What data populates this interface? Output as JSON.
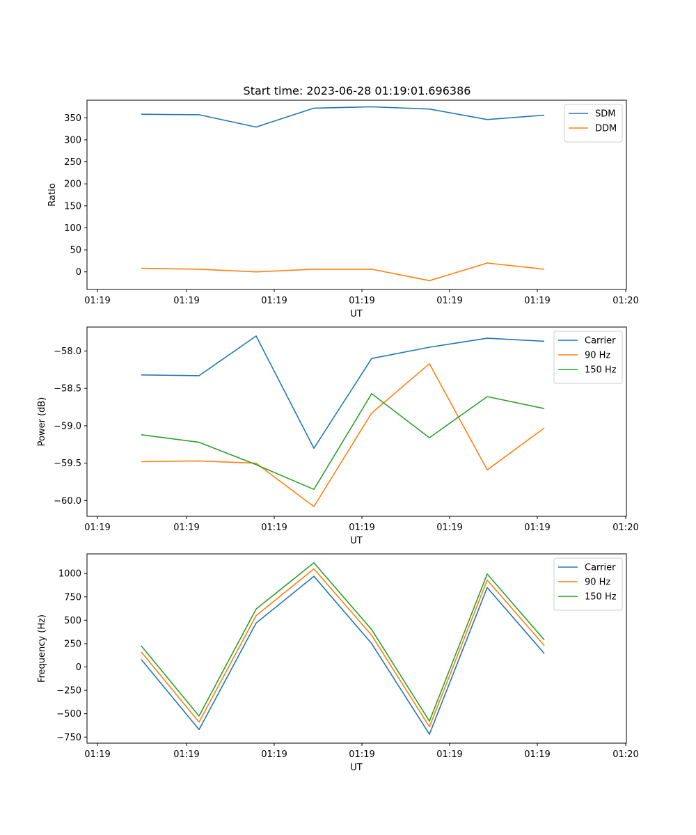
{
  "figure": {
    "title": "Start time: 2023-06-28 01:19:01.696386"
  },
  "chart_data": [
    {
      "type": "line",
      "title": "Start time: 2023-06-28 01:19:01.696386",
      "xlabel": "UT",
      "ylabel": "Ratio",
      "x_tick_labels": [
        "01:19",
        "01:19",
        "01:19",
        "01:19",
        "01:19",
        "01:19",
        "01:20"
      ],
      "y_ticks": [
        0,
        50,
        100,
        150,
        200,
        250,
        300,
        350
      ],
      "y_tick_labels": [
        "0",
        "50",
        "100",
        "150",
        "200",
        "250",
        "300",
        "350"
      ],
      "ylim": [
        -40,
        390
      ],
      "legend_position": "top-right",
      "grid": false,
      "series": [
        {
          "name": "SDM",
          "color": "#1f77b4",
          "values": [
            358,
            357,
            329,
            372,
            375,
            370,
            346,
            356
          ]
        },
        {
          "name": "DDM",
          "color": "#ff7f0e",
          "values": [
            8,
            6,
            0,
            6,
            6,
            -20,
            20,
            6
          ]
        }
      ]
    },
    {
      "type": "line",
      "xlabel": "UT",
      "ylabel": "Power (dB)",
      "x_tick_labels": [
        "01:19",
        "01:19",
        "01:19",
        "01:19",
        "01:19",
        "01:19",
        "01:20"
      ],
      "y_ticks": [
        -60.0,
        -59.5,
        -59.0,
        -58.5,
        -58.0
      ],
      "y_tick_labels": [
        "−60.0",
        "−59.5",
        "−59.0",
        "−58.5",
        "−58.0"
      ],
      "ylim": [
        -60.21,
        -57.68
      ],
      "legend_position": "top-right",
      "grid": false,
      "series": [
        {
          "name": "Carrier",
          "color": "#1f77b4",
          "values": [
            -58.32,
            -58.33,
            -57.8,
            -59.3,
            -58.1,
            -57.95,
            -57.83,
            -57.87
          ]
        },
        {
          "name": "90 Hz",
          "color": "#ff7f0e",
          "values": [
            -59.48,
            -59.47,
            -59.5,
            -60.08,
            -58.83,
            -58.17,
            -59.59,
            -59.03
          ]
        },
        {
          "name": "150 Hz",
          "color": "#2ca02c",
          "values": [
            -59.12,
            -59.22,
            -59.52,
            -59.85,
            -58.57,
            -59.16,
            -58.61,
            -58.77
          ]
        }
      ]
    },
    {
      "type": "line",
      "xlabel": "UT",
      "ylabel": "Frequency (Hz)",
      "x_tick_labels": [
        "01:19",
        "01:19",
        "01:19",
        "01:19",
        "01:19",
        "01:19",
        "01:20"
      ],
      "y_ticks": [
        -750,
        -500,
        -250,
        0,
        250,
        500,
        750,
        1000
      ],
      "y_tick_labels": [
        "−750",
        "−500",
        "−250",
        "0",
        "250",
        "500",
        "750",
        "1000"
      ],
      "ylim": [
        -815,
        1210
      ],
      "legend_position": "top-right",
      "grid": false,
      "series": [
        {
          "name": "Carrier",
          "color": "#1f77b4",
          "values": [
            80,
            -670,
            470,
            970,
            250,
            -720,
            850,
            145
          ]
        },
        {
          "name": "90 Hz",
          "color": "#ff7f0e",
          "values": [
            160,
            -590,
            550,
            1050,
            340,
            -640,
            930,
            230
          ]
        },
        {
          "name": "150 Hz",
          "color": "#2ca02c",
          "values": [
            225,
            -525,
            620,
            1115,
            400,
            -580,
            995,
            290
          ]
        }
      ]
    }
  ]
}
